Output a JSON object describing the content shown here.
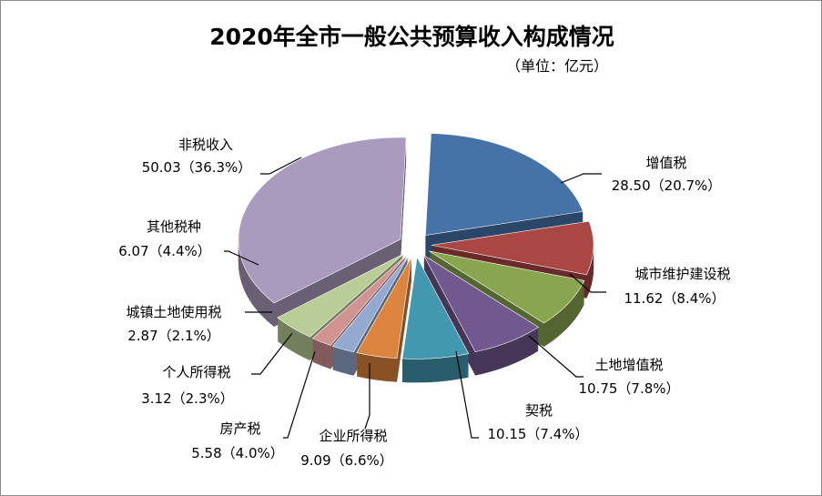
{
  "chart_data": {
    "type": "pie",
    "style": "3d-exploded",
    "title": "2020年全市一般公共预算收入构成情况",
    "subtitle": "（单位：亿元）",
    "slices": [
      {
        "label": "增值税",
        "value": 28.5,
        "percent": "20.7%",
        "display": "28.50（20.7%）",
        "color": "#4572A7"
      },
      {
        "label": "城市维护建设税",
        "value": 11.62,
        "percent": "8.4%",
        "display": "11.62（8.4%）",
        "color": "#AA4643"
      },
      {
        "label": "土地增值税",
        "value": 10.75,
        "percent": "7.8%",
        "display": "10.75（7.8%）",
        "color": "#89A54E"
      },
      {
        "label": "契税",
        "value": 10.15,
        "percent": "7.4%",
        "display": "10.15（7.4%）",
        "color": "#71588F"
      },
      {
        "label": "企业所得税",
        "value": 9.09,
        "percent": "6.6%",
        "display": "9.09（6.6%）",
        "color": "#4198AF"
      },
      {
        "label": "房产税",
        "value": 5.58,
        "percent": "4.0%",
        "display": "5.58（4.0%）",
        "color": "#DB843D"
      },
      {
        "label": "个人所得税",
        "value": 3.12,
        "percent": "2.3%",
        "display": "3.12（2.3%）",
        "color": "#93A9CF"
      },
      {
        "label": "城镇土地使用税",
        "value": 2.87,
        "percent": "2.1%",
        "display": "2.87（2.1%）",
        "color": "#D19392"
      },
      {
        "label": "其他税种",
        "value": 6.07,
        "percent": "4.4%",
        "display": "6.07（4.4%）",
        "color": "#B9CD96"
      },
      {
        "label": "非税收入",
        "value": 50.03,
        "percent": "36.3%",
        "display": "50.03（36.3%）",
        "color": "#A99BBD"
      }
    ]
  }
}
